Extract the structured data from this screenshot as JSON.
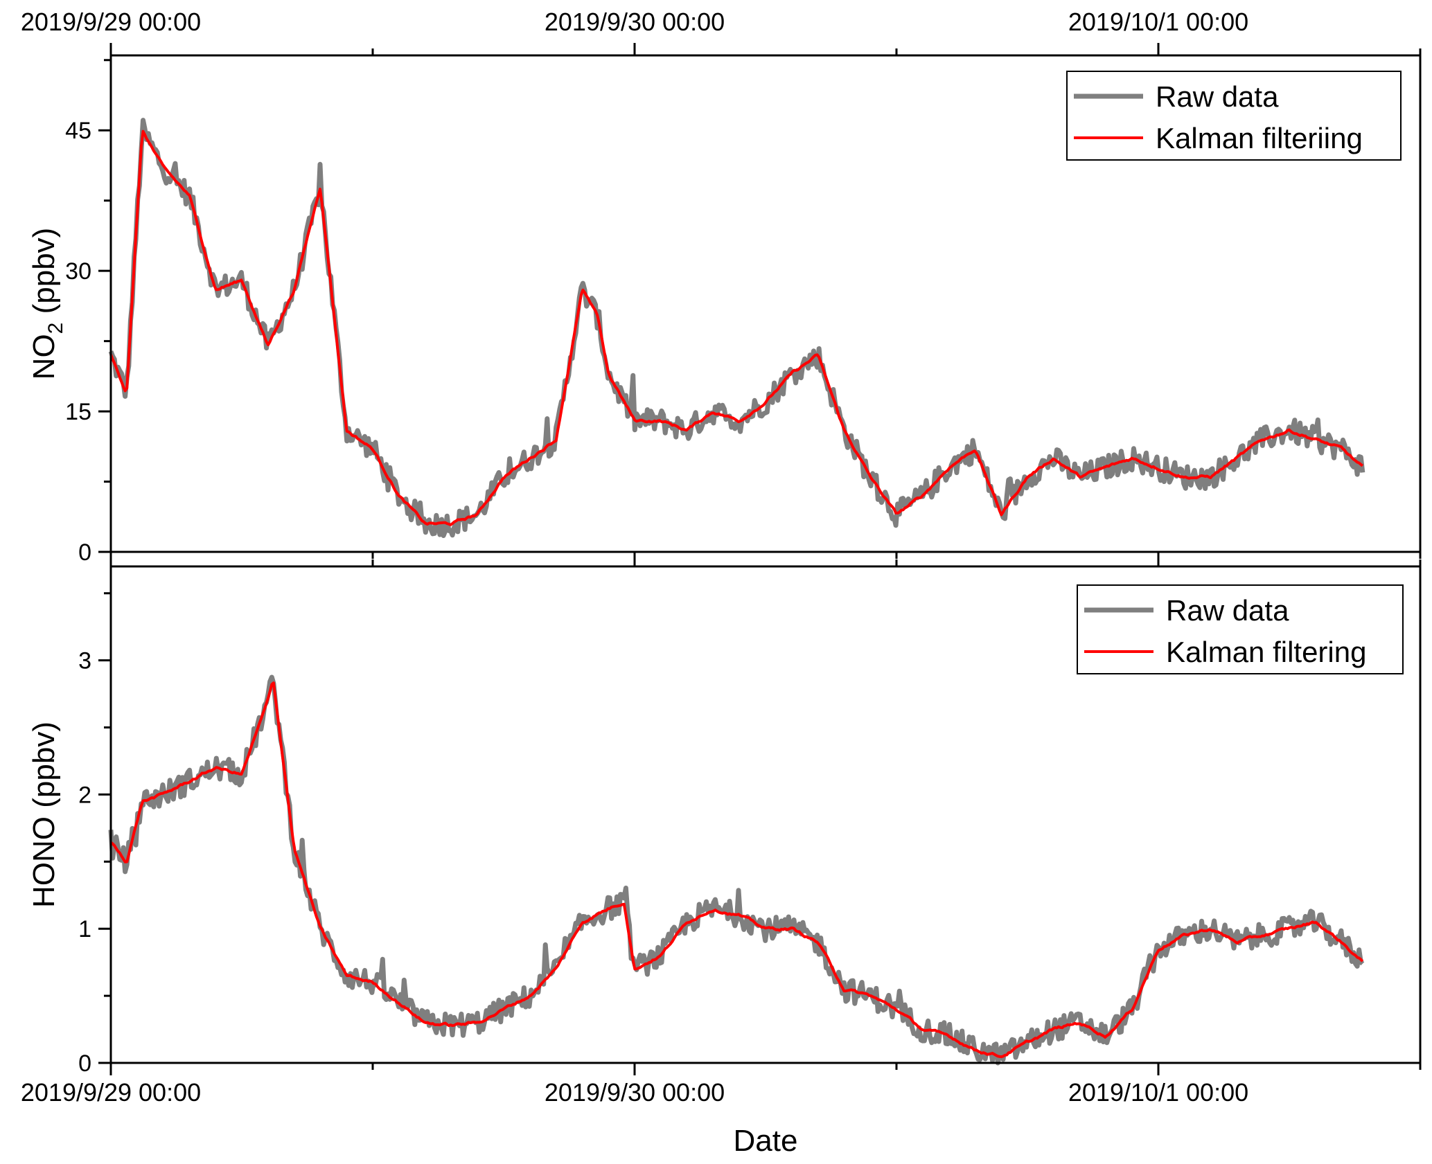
{
  "chart_data": [
    {
      "type": "line",
      "ylabel": "NO",
      "ylabel_sub": "2",
      "ylabel_unit": " (ppbv)",
      "ylim": [
        0,
        53
      ],
      "yticks": [
        0,
        15,
        30,
        45
      ],
      "xlim": [
        0,
        2.5
      ],
      "xticks": [
        0,
        1,
        2
      ],
      "xtick_labels": [
        "2019/9/29 00:00",
        "2019/9/30 00:00",
        "2019/10/1 00:00"
      ],
      "legend_position": "top-right",
      "colors": {
        "raw": "#7f7f7f",
        "kalman": "#ff0000"
      },
      "series": [
        {
          "name": "Raw data",
          "x": [
            0,
            0.03,
            0.06,
            0.1,
            0.15,
            0.2,
            0.25,
            0.3,
            0.35,
            0.4,
            0.45,
            0.5,
            0.55,
            0.6,
            0.65,
            0.7,
            0.75,
            0.8,
            0.85,
            0.9,
            0.93,
            0.95,
            1.0,
            1.05,
            1.1,
            1.15,
            1.2,
            1.25,
            1.3,
            1.35,
            1.4,
            1.45,
            1.5,
            1.55,
            1.6,
            1.65,
            1.7,
            1.75,
            1.8,
            1.85,
            1.9,
            1.95,
            2.0,
            2.05,
            2.1,
            2.15,
            2.2,
            2.25,
            2.3,
            2.35,
            2.39
          ],
          "values": [
            21,
            17,
            45,
            41,
            38,
            28,
            29,
            22,
            28,
            39,
            13,
            11,
            6,
            3,
            3,
            4,
            8,
            10,
            12,
            28,
            25,
            19,
            14,
            14,
            13,
            15,
            14,
            16,
            19,
            21,
            13,
            8,
            4,
            6,
            9,
            11,
            4,
            8,
            10,
            8,
            9,
            10,
            9,
            8,
            8,
            10,
            12,
            13,
            12,
            11,
            9
          ],
          "noise": 1.3
        },
        {
          "name": "Kalman filteriing",
          "x": [
            0,
            0.03,
            0.06,
            0.1,
            0.15,
            0.2,
            0.25,
            0.3,
            0.35,
            0.4,
            0.45,
            0.5,
            0.55,
            0.6,
            0.65,
            0.7,
            0.75,
            0.8,
            0.85,
            0.9,
            0.93,
            0.95,
            1.0,
            1.05,
            1.1,
            1.15,
            1.2,
            1.25,
            1.3,
            1.35,
            1.4,
            1.45,
            1.5,
            1.55,
            1.6,
            1.65,
            1.7,
            1.75,
            1.8,
            1.85,
            1.9,
            1.95,
            2.0,
            2.05,
            2.1,
            2.15,
            2.2,
            2.25,
            2.3,
            2.35,
            2.39
          ],
          "values": [
            21,
            17,
            45,
            41,
            38,
            28,
            29,
            22,
            28,
            39,
            13,
            11,
            6,
            3,
            3,
            4,
            8,
            10,
            12,
            28,
            25,
            19,
            14,
            14,
            13,
            15,
            14,
            16,
            19,
            21,
            13,
            8,
            4,
            6,
            9,
            11,
            4,
            8,
            10,
            8,
            9,
            10,
            9,
            8,
            8,
            10,
            12,
            13,
            12,
            11,
            9
          ],
          "noise": 0
        }
      ]
    },
    {
      "type": "line",
      "ylabel": "HONO (ppbv)",
      "ylim": [
        0,
        3.7
      ],
      "yticks": [
        0,
        1,
        2,
        3
      ],
      "xlim": [
        0,
        2.5
      ],
      "xticks": [
        0,
        1,
        2
      ],
      "xtick_labels": [
        "2019/9/29 00:00",
        "2019/9/30 00:00",
        "2019/10/1 00:00"
      ],
      "xlabel": "Date",
      "legend_position": "top-right",
      "colors": {
        "raw": "#7f7f7f",
        "kalman": "#ff0000"
      },
      "series": [
        {
          "name": "Raw data",
          "x": [
            0,
            0.03,
            0.06,
            0.1,
            0.15,
            0.2,
            0.25,
            0.3,
            0.31,
            0.35,
            0.4,
            0.45,
            0.5,
            0.55,
            0.6,
            0.65,
            0.7,
            0.75,
            0.8,
            0.85,
            0.9,
            0.95,
            0.98,
            1.0,
            1.05,
            1.1,
            1.15,
            1.2,
            1.25,
            1.3,
            1.35,
            1.4,
            1.45,
            1.5,
            1.55,
            1.6,
            1.65,
            1.7,
            1.75,
            1.8,
            1.85,
            1.9,
            1.95,
            2.0,
            2.05,
            2.1,
            2.15,
            2.2,
            2.25,
            2.3,
            2.35,
            2.39
          ],
          "values": [
            1.65,
            1.5,
            1.95,
            2.0,
            2.1,
            2.2,
            2.15,
            2.7,
            2.85,
            1.6,
            1.0,
            0.65,
            0.6,
            0.45,
            0.3,
            0.28,
            0.3,
            0.4,
            0.5,
            0.7,
            1.05,
            1.15,
            1.2,
            0.7,
            0.8,
            1.05,
            1.15,
            1.1,
            1.0,
            1.0,
            0.9,
            0.55,
            0.5,
            0.4,
            0.25,
            0.2,
            0.1,
            0.05,
            0.15,
            0.25,
            0.3,
            0.2,
            0.4,
            0.85,
            0.95,
            1.0,
            0.9,
            0.95,
            1.0,
            1.05,
            0.9,
            0.75
          ],
          "noise": 0.09
        },
        {
          "name": "Kalman filtering",
          "x": [
            0,
            0.03,
            0.06,
            0.1,
            0.15,
            0.2,
            0.25,
            0.3,
            0.31,
            0.35,
            0.4,
            0.45,
            0.5,
            0.55,
            0.6,
            0.65,
            0.7,
            0.75,
            0.8,
            0.85,
            0.9,
            0.95,
            0.98,
            1.0,
            1.05,
            1.1,
            1.15,
            1.2,
            1.25,
            1.3,
            1.35,
            1.4,
            1.45,
            1.5,
            1.55,
            1.6,
            1.65,
            1.7,
            1.75,
            1.8,
            1.85,
            1.9,
            1.95,
            2.0,
            2.05,
            2.1,
            2.15,
            2.2,
            2.25,
            2.3,
            2.35,
            2.39
          ],
          "values": [
            1.65,
            1.5,
            1.95,
            2.0,
            2.1,
            2.2,
            2.15,
            2.7,
            2.85,
            1.6,
            1.0,
            0.65,
            0.6,
            0.45,
            0.3,
            0.28,
            0.3,
            0.4,
            0.5,
            0.7,
            1.05,
            1.15,
            1.2,
            0.7,
            0.8,
            1.05,
            1.15,
            1.1,
            1.0,
            1.0,
            0.9,
            0.55,
            0.5,
            0.4,
            0.25,
            0.2,
            0.1,
            0.05,
            0.15,
            0.25,
            0.3,
            0.2,
            0.4,
            0.85,
            0.95,
            1.0,
            0.9,
            0.95,
            1.0,
            1.05,
            0.9,
            0.75
          ],
          "noise": 0
        }
      ]
    }
  ]
}
